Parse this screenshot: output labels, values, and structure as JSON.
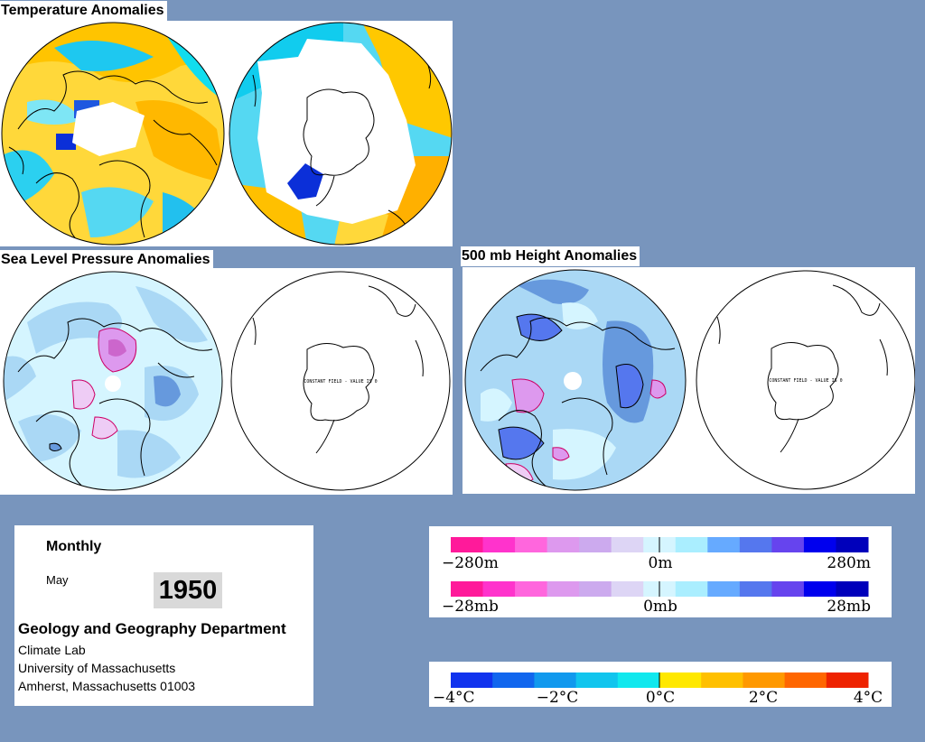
{
  "sections": {
    "temperature_title": "Temperature Anomalies",
    "slp_title": "Sea Level Pressure Anomalies",
    "height_title": "500 mb Height Anomalies"
  },
  "map_notes": {
    "slp_south": "CONSTANT FIELD - VALUE IS 0",
    "height_south": "CONSTANT FIELD - VALUE IS 0"
  },
  "info": {
    "period": "Monthly",
    "month": "May",
    "year": "1950",
    "department": "Geology and Geography Department",
    "lab": "Climate Lab",
    "university": "University of Massachusetts",
    "address": "Amherst, Massachusetts 01003"
  },
  "legends": {
    "height": {
      "labels": [
        "−280m",
        "0m",
        "280m"
      ]
    },
    "pressure": {
      "labels": [
        "−28mb",
        "0mb",
        "28mb"
      ]
    },
    "temperature": {
      "labels": [
        "−4°C",
        "−2°C",
        "0°C",
        "2°C",
        "4°C"
      ]
    }
  },
  "colors": {
    "background": "#7895bd",
    "anomaly_scale": [
      "#ff1a9a",
      "#ff33cc",
      "#ff66dd",
      "#dd99ee",
      "#ccaaee",
      "#ddd5f5",
      "#d5f5ff",
      "#aaeeff",
      "#66aaff",
      "#5577ee",
      "#6644ee",
      "#0000ee",
      "#0000bb"
    ],
    "temperature_scale": [
      "#1133ee",
      "#1166ee",
      "#1199ee",
      "#11c5ee",
      "#11e8ee",
      "#ffe800",
      "#ffc000",
      "#ff9900",
      "#ff6600",
      "#ee2200"
    ]
  }
}
